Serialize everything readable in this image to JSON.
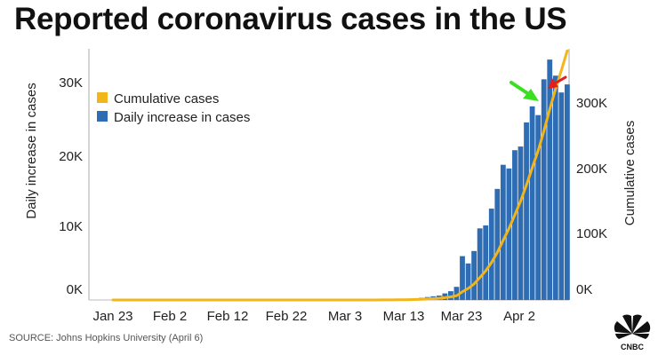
{
  "title": "Reported coronavirus cases in the US",
  "source": "SOURCE: Johns Hopkins University (April 6)",
  "logo": {
    "icon": "cnbc-peacock-icon",
    "text": "CNBC"
  },
  "colors": {
    "bars": "#2e6db4",
    "line": "#f2b51a",
    "green_arrow": "#38e01f",
    "red_arrow": "#e01f1f",
    "axis": "#999999"
  },
  "chart_data": {
    "type": "bar",
    "title": "Reported coronavirus cases in the US",
    "ylabel_left": "Daily increase in cases",
    "ylabel_right": "Cumulative cases",
    "x_tick_labels": [
      "Jan 23",
      "Feb 2",
      "Feb 12",
      "Feb 22",
      "Mar 3",
      "Mar 13",
      "Mar 23",
      "Apr 2"
    ],
    "left_axis": {
      "ticks": [
        0,
        10000,
        20000,
        30000
      ],
      "tick_labels": [
        "0K",
        "10K",
        "20K",
        "30K"
      ],
      "ylim": [
        0,
        34000
      ]
    },
    "right_axis": {
      "ticks": [
        0,
        100000,
        200000,
        300000
      ],
      "tick_labels": [
        "0K",
        "100K",
        "200K",
        "300K"
      ],
      "ylim": [
        0,
        365000
      ]
    },
    "legend": {
      "position": "top-left",
      "entries": [
        "Cumulative cases",
        "Daily increase in cases"
      ]
    },
    "start_date": "Jan 23",
    "series": [
      {
        "name": "Daily increase in cases",
        "axis": "left",
        "kind": "bar",
        "values": [
          0,
          0,
          1,
          2,
          0,
          0,
          0,
          1,
          0,
          1,
          2,
          1,
          0,
          0,
          0,
          0,
          0,
          1,
          0,
          0,
          1,
          0,
          0,
          0,
          0,
          0,
          0,
          0,
          0,
          0,
          0,
          0,
          0,
          0,
          0,
          0,
          0,
          0,
          0,
          0,
          5,
          10,
          0,
          15,
          20,
          20,
          35,
          50,
          60,
          70,
          120,
          150,
          200,
          300,
          400,
          500,
          600,
          900,
          1200,
          1800,
          6000,
          5000,
          6700,
          9800,
          10200,
          12500,
          15200,
          18500,
          18000,
          20500,
          21000,
          24300,
          26500,
          25300,
          30200,
          32900,
          30700,
          28400,
          29500
        ]
      },
      {
        "name": "Cumulative cases",
        "axis": "right",
        "kind": "line",
        "values": [
          1,
          1,
          2,
          5,
          5,
          5,
          5,
          6,
          6,
          7,
          8,
          11,
          11,
          11,
          11,
          11,
          11,
          12,
          12,
          12,
          13,
          13,
          13,
          13,
          13,
          13,
          13,
          13,
          13,
          13,
          13,
          13,
          13,
          13,
          13,
          13,
          13,
          13,
          13,
          13,
          18,
          28,
          28,
          43,
          63,
          83,
          118,
          168,
          228,
          298,
          418,
          568,
          768,
          1068,
          1468,
          1968,
          2568,
          3468,
          4668,
          6468,
          12468,
          17468,
          24168,
          33968,
          44168,
          56668,
          71868,
          90368,
          108368,
          128868,
          149868,
          174168,
          200668,
          225968,
          256168,
          289068,
          319768,
          348168,
          377668
        ]
      }
    ],
    "annotations": [
      {
        "kind": "arrow",
        "color": "#38e01f",
        "points_to": "Apr 3"
      },
      {
        "kind": "arrow",
        "color": "#e01f1f",
        "points_to": "Apr 5"
      }
    ]
  }
}
